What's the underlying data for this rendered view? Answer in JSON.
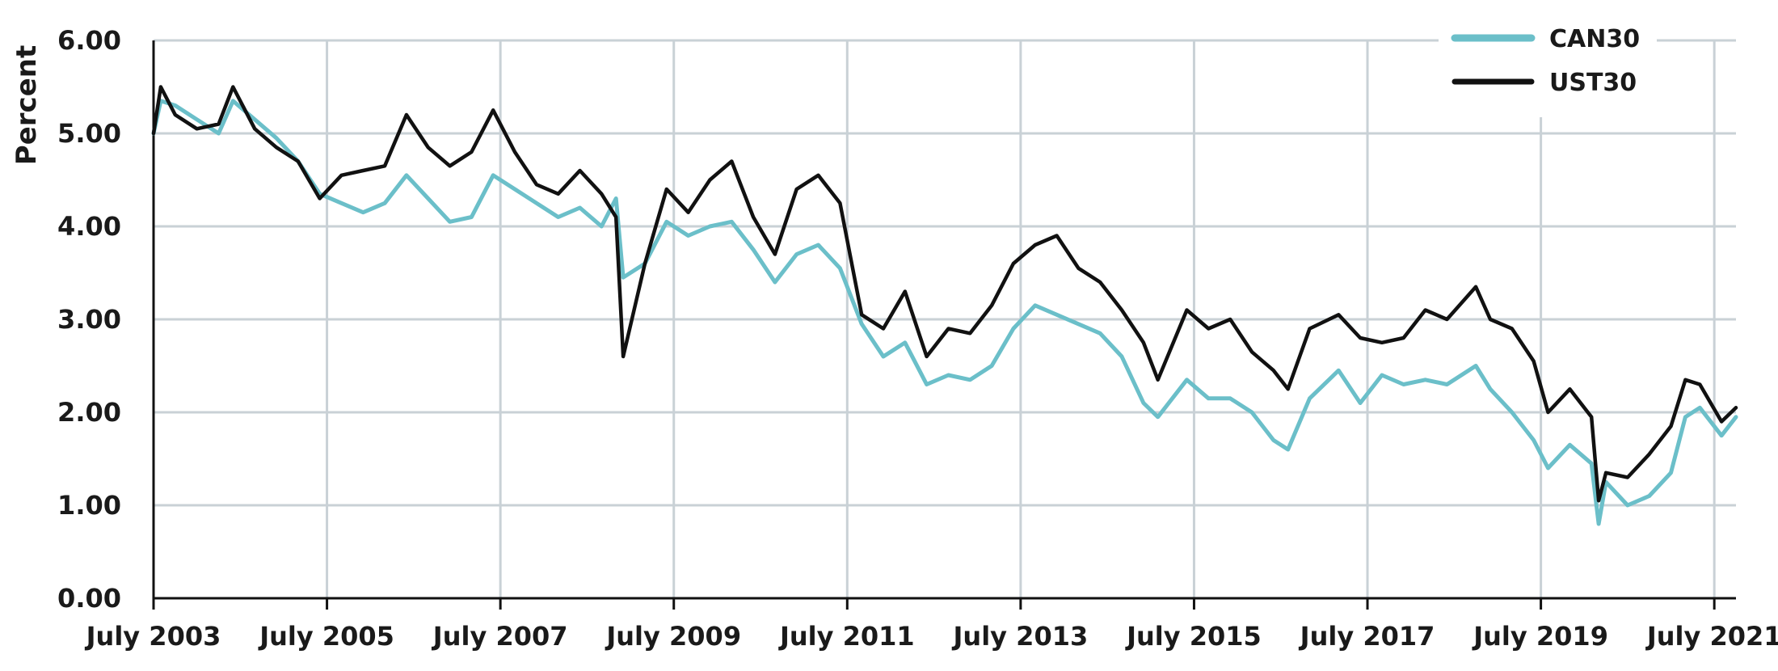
{
  "chart_data": {
    "type": "line",
    "title": "",
    "xlabel": "",
    "ylabel": "Percent",
    "ylim": [
      0,
      6
    ],
    "xlim": [
      "2003-07",
      "2021-10"
    ],
    "y_ticks": [
      "0.00",
      "1.00",
      "2.00",
      "3.00",
      "4.00",
      "5.00",
      "6.00"
    ],
    "x_ticks": [
      "July 2003",
      "July 2005",
      "July 2007",
      "July 2009",
      "July 2011",
      "July 2013",
      "July 2015",
      "July 2017",
      "July 2019",
      "July 2021"
    ],
    "grid": true,
    "legend_position": "top-right",
    "series": [
      {
        "name": "CAN30",
        "color": "#6bbfc9",
        "points": [
          [
            "2003-07",
            5.0
          ],
          [
            "2003-08",
            5.35
          ],
          [
            "2003-10",
            5.3
          ],
          [
            "2004-01",
            5.15
          ],
          [
            "2004-04",
            5.0
          ],
          [
            "2004-06",
            5.35
          ],
          [
            "2004-09",
            5.15
          ],
          [
            "2004-12",
            4.95
          ],
          [
            "2005-03",
            4.7
          ],
          [
            "2005-06",
            4.35
          ],
          [
            "2005-09",
            4.25
          ],
          [
            "2005-12",
            4.15
          ],
          [
            "2006-03",
            4.25
          ],
          [
            "2006-06",
            4.55
          ],
          [
            "2006-09",
            4.3
          ],
          [
            "2006-12",
            4.05
          ],
          [
            "2007-03",
            4.1
          ],
          [
            "2007-06",
            4.55
          ],
          [
            "2007-09",
            4.4
          ],
          [
            "2007-12",
            4.25
          ],
          [
            "2008-03",
            4.1
          ],
          [
            "2008-06",
            4.2
          ],
          [
            "2008-09",
            4.0
          ],
          [
            "2008-11",
            4.3
          ],
          [
            "2008-12",
            3.45
          ],
          [
            "2009-03",
            3.6
          ],
          [
            "2009-06",
            4.05
          ],
          [
            "2009-09",
            3.9
          ],
          [
            "2009-12",
            4.0
          ],
          [
            "2010-03",
            4.05
          ],
          [
            "2010-06",
            3.75
          ],
          [
            "2010-09",
            3.4
          ],
          [
            "2010-12",
            3.7
          ],
          [
            "2011-03",
            3.8
          ],
          [
            "2011-06",
            3.55
          ],
          [
            "2011-09",
            2.95
          ],
          [
            "2011-12",
            2.6
          ],
          [
            "2012-03",
            2.75
          ],
          [
            "2012-06",
            2.3
          ],
          [
            "2012-09",
            2.4
          ],
          [
            "2012-12",
            2.35
          ],
          [
            "2013-03",
            2.5
          ],
          [
            "2013-06",
            2.9
          ],
          [
            "2013-09",
            3.15
          ],
          [
            "2013-12",
            3.05
          ],
          [
            "2014-03",
            2.95
          ],
          [
            "2014-06",
            2.85
          ],
          [
            "2014-09",
            2.6
          ],
          [
            "2014-12",
            2.1
          ],
          [
            "2015-02",
            1.95
          ],
          [
            "2015-06",
            2.35
          ],
          [
            "2015-09",
            2.15
          ],
          [
            "2015-12",
            2.15
          ],
          [
            "2016-03",
            2.0
          ],
          [
            "2016-06",
            1.7
          ],
          [
            "2016-08",
            1.6
          ],
          [
            "2016-11",
            2.15
          ],
          [
            "2017-03",
            2.45
          ],
          [
            "2017-06",
            2.1
          ],
          [
            "2017-09",
            2.4
          ],
          [
            "2017-12",
            2.3
          ],
          [
            "2018-03",
            2.35
          ],
          [
            "2018-06",
            2.3
          ],
          [
            "2018-10",
            2.5
          ],
          [
            "2018-12",
            2.25
          ],
          [
            "2019-03",
            2.0
          ],
          [
            "2019-06",
            1.7
          ],
          [
            "2019-08",
            1.4
          ],
          [
            "2019-11",
            1.65
          ],
          [
            "2020-02",
            1.45
          ],
          [
            "2020-03",
            0.8
          ],
          [
            "2020-04",
            1.25
          ],
          [
            "2020-07",
            1.0
          ],
          [
            "2020-10",
            1.1
          ],
          [
            "2021-01",
            1.35
          ],
          [
            "2021-03",
            1.95
          ],
          [
            "2021-05",
            2.05
          ],
          [
            "2021-08",
            1.75
          ],
          [
            "2021-10",
            1.95
          ]
        ]
      },
      {
        "name": "UST30",
        "color": "#111111",
        "points": [
          [
            "2003-07",
            5.0
          ],
          [
            "2003-08",
            5.5
          ],
          [
            "2003-10",
            5.2
          ],
          [
            "2004-01",
            5.05
          ],
          [
            "2004-04",
            5.1
          ],
          [
            "2004-06",
            5.5
          ],
          [
            "2004-09",
            5.05
          ],
          [
            "2004-12",
            4.85
          ],
          [
            "2005-03",
            4.7
          ],
          [
            "2005-06",
            4.3
          ],
          [
            "2005-09",
            4.55
          ],
          [
            "2005-12",
            4.6
          ],
          [
            "2006-03",
            4.65
          ],
          [
            "2006-06",
            5.2
          ],
          [
            "2006-09",
            4.85
          ],
          [
            "2006-12",
            4.65
          ],
          [
            "2007-03",
            4.8
          ],
          [
            "2007-06",
            5.25
          ],
          [
            "2007-09",
            4.8
          ],
          [
            "2007-12",
            4.45
          ],
          [
            "2008-03",
            4.35
          ],
          [
            "2008-06",
            4.6
          ],
          [
            "2008-09",
            4.35
          ],
          [
            "2008-11",
            4.1
          ],
          [
            "2008-12",
            2.6
          ],
          [
            "2009-03",
            3.6
          ],
          [
            "2009-06",
            4.4
          ],
          [
            "2009-09",
            4.15
          ],
          [
            "2009-12",
            4.5
          ],
          [
            "2010-03",
            4.7
          ],
          [
            "2010-06",
            4.1
          ],
          [
            "2010-09",
            3.7
          ],
          [
            "2010-12",
            4.4
          ],
          [
            "2011-03",
            4.55
          ],
          [
            "2011-06",
            4.25
          ],
          [
            "2011-09",
            3.05
          ],
          [
            "2011-12",
            2.9
          ],
          [
            "2012-03",
            3.3
          ],
          [
            "2012-06",
            2.6
          ],
          [
            "2012-09",
            2.9
          ],
          [
            "2012-12",
            2.85
          ],
          [
            "2013-03",
            3.15
          ],
          [
            "2013-06",
            3.6
          ],
          [
            "2013-09",
            3.8
          ],
          [
            "2013-12",
            3.9
          ],
          [
            "2014-03",
            3.55
          ],
          [
            "2014-06",
            3.4
          ],
          [
            "2014-09",
            3.1
          ],
          [
            "2014-12",
            2.75
          ],
          [
            "2015-02",
            2.35
          ],
          [
            "2015-06",
            3.1
          ],
          [
            "2015-09",
            2.9
          ],
          [
            "2015-12",
            3.0
          ],
          [
            "2016-03",
            2.65
          ],
          [
            "2016-06",
            2.45
          ],
          [
            "2016-08",
            2.25
          ],
          [
            "2016-11",
            2.9
          ],
          [
            "2017-03",
            3.05
          ],
          [
            "2017-06",
            2.8
          ],
          [
            "2017-09",
            2.75
          ],
          [
            "2017-12",
            2.8
          ],
          [
            "2018-03",
            3.1
          ],
          [
            "2018-06",
            3.0
          ],
          [
            "2018-10",
            3.35
          ],
          [
            "2018-12",
            3.0
          ],
          [
            "2019-03",
            2.9
          ],
          [
            "2019-06",
            2.55
          ],
          [
            "2019-08",
            2.0
          ],
          [
            "2019-11",
            2.25
          ],
          [
            "2020-02",
            1.95
          ],
          [
            "2020-03",
            1.05
          ],
          [
            "2020-04",
            1.35
          ],
          [
            "2020-07",
            1.3
          ],
          [
            "2020-10",
            1.55
          ],
          [
            "2021-01",
            1.85
          ],
          [
            "2021-03",
            2.35
          ],
          [
            "2021-05",
            2.3
          ],
          [
            "2021-08",
            1.9
          ],
          [
            "2021-10",
            2.05
          ]
        ]
      }
    ]
  }
}
